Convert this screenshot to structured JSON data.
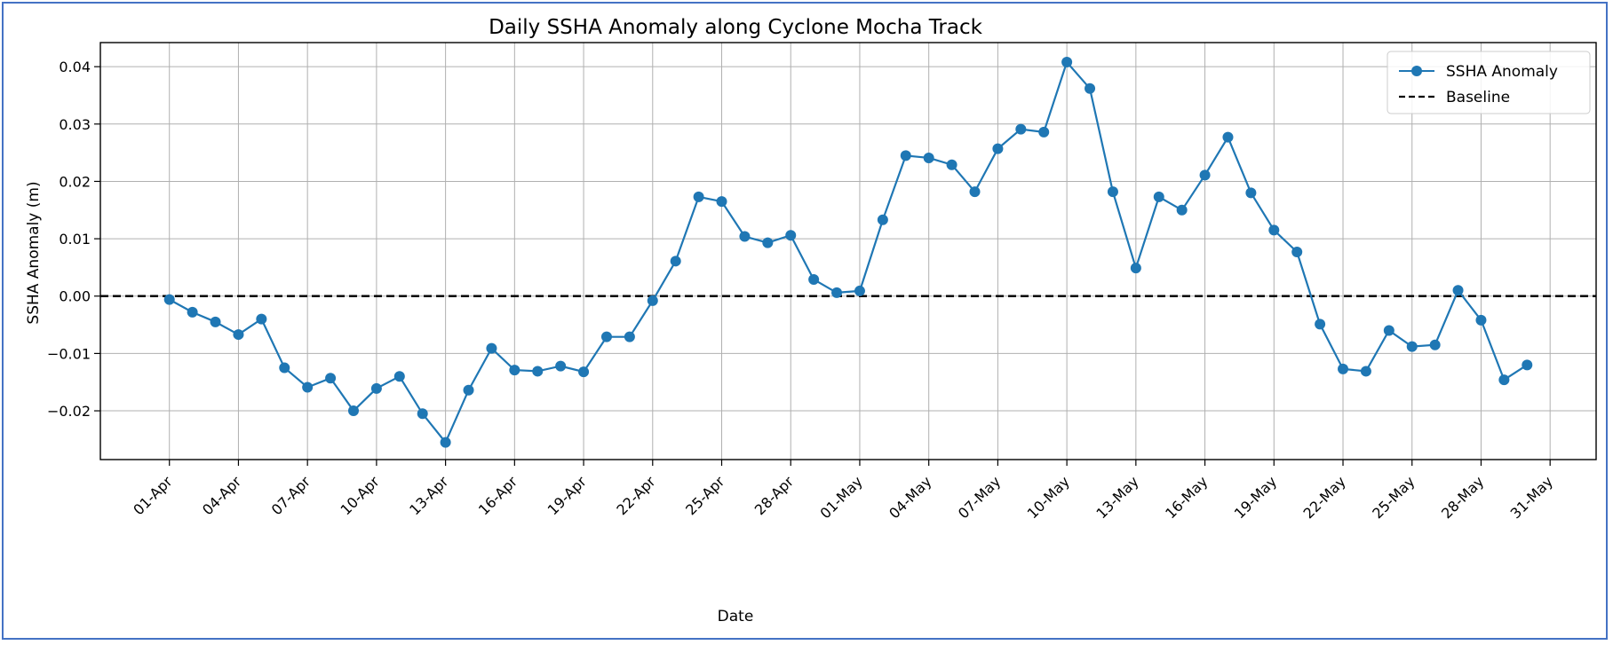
{
  "chart_data": {
    "type": "line",
    "title": "Daily SSHA Anomaly along Cyclone Mocha Track",
    "xlabel": "Date",
    "ylabel": "SSHA Anomaly (m)",
    "x": [
      "2023-04-01",
      "2023-04-02",
      "2023-04-03",
      "2023-04-04",
      "2023-04-05",
      "2023-04-06",
      "2023-04-07",
      "2023-04-08",
      "2023-04-09",
      "2023-04-10",
      "2023-04-11",
      "2023-04-12",
      "2023-04-13",
      "2023-04-14",
      "2023-04-15",
      "2023-04-16",
      "2023-04-17",
      "2023-04-18",
      "2023-04-19",
      "2023-04-20",
      "2023-04-21",
      "2023-04-22",
      "2023-04-23",
      "2023-04-24",
      "2023-04-25",
      "2023-04-26",
      "2023-04-27",
      "2023-04-28",
      "2023-04-29",
      "2023-04-30",
      "2023-05-01",
      "2023-05-02",
      "2023-05-03",
      "2023-05-04",
      "2023-05-05",
      "2023-05-06",
      "2023-05-07",
      "2023-05-08",
      "2023-05-09",
      "2023-05-10",
      "2023-05-11",
      "2023-05-12",
      "2023-05-13",
      "2023-05-14",
      "2023-05-15",
      "2023-05-16",
      "2023-05-17",
      "2023-05-18",
      "2023-05-19",
      "2023-05-20",
      "2023-05-21",
      "2023-05-22",
      "2023-05-23",
      "2023-05-24",
      "2023-05-25",
      "2023-05-26",
      "2023-05-27",
      "2023-05-28",
      "2023-05-29",
      "2023-05-30"
    ],
    "series": [
      {
        "name": "SSHA Anomaly",
        "color": "#1f77b4",
        "values": [
          -0.0006,
          -0.0028,
          -0.0045,
          -0.0067,
          -0.004,
          -0.0125,
          -0.0159,
          -0.0143,
          -0.02,
          -0.0161,
          -0.014,
          -0.0205,
          -0.0255,
          -0.0164,
          -0.0091,
          -0.0129,
          -0.0131,
          -0.0122,
          -0.0132,
          -0.0071,
          -0.0071,
          -0.0008,
          0.0061,
          0.0173,
          0.0165,
          0.0104,
          0.0093,
          0.0106,
          0.0029,
          0.0006,
          0.0009,
          0.0133,
          0.0245,
          0.0241,
          0.0229,
          0.0182,
          0.0257,
          0.0291,
          0.0286,
          0.0408,
          0.0362,
          0.0182,
          0.0049,
          0.0173,
          0.015,
          0.0211,
          0.0277,
          0.018,
          0.0115,
          0.0077,
          -0.0049,
          -0.0127,
          -0.0131,
          -0.006,
          -0.0088,
          -0.0085,
          0.001,
          -0.0042,
          -0.0146,
          -0.012
        ]
      }
    ],
    "baseline": {
      "name": "Baseline",
      "value": 0.0,
      "color": "#000000",
      "style": "dashed"
    },
    "xticks": [
      "01-Apr",
      "04-Apr",
      "07-Apr",
      "10-Apr",
      "13-Apr",
      "16-Apr",
      "19-Apr",
      "22-Apr",
      "25-Apr",
      "28-Apr",
      "01-May",
      "04-May",
      "07-May",
      "10-May",
      "13-May",
      "16-May",
      "19-May",
      "22-May",
      "25-May",
      "28-May",
      "31-May"
    ],
    "xtick_dates": [
      "2023-04-01",
      "2023-04-04",
      "2023-04-07",
      "2023-04-10",
      "2023-04-13",
      "2023-04-16",
      "2023-04-19",
      "2023-04-22",
      "2023-04-25",
      "2023-04-28",
      "2023-05-01",
      "2023-05-04",
      "2023-05-07",
      "2023-05-10",
      "2023-05-13",
      "2023-05-16",
      "2023-05-19",
      "2023-05-22",
      "2023-05-25",
      "2023-05-28",
      "2023-05-31"
    ],
    "yticks": [
      -0.02,
      -0.01,
      0.0,
      0.01,
      0.02,
      0.03,
      0.04
    ],
    "ytick_labels": [
      "−0.02",
      "−0.01",
      "0.00",
      "0.01",
      "0.02",
      "0.03",
      "0.04"
    ],
    "xlim": [
      "2023-03-29",
      "2023-06-02"
    ],
    "ylim": [
      -0.0285,
      0.0442
    ],
    "grid": true,
    "legend": {
      "placement": "top-right",
      "entries": [
        "SSHA Anomaly",
        "Baseline"
      ]
    }
  }
}
